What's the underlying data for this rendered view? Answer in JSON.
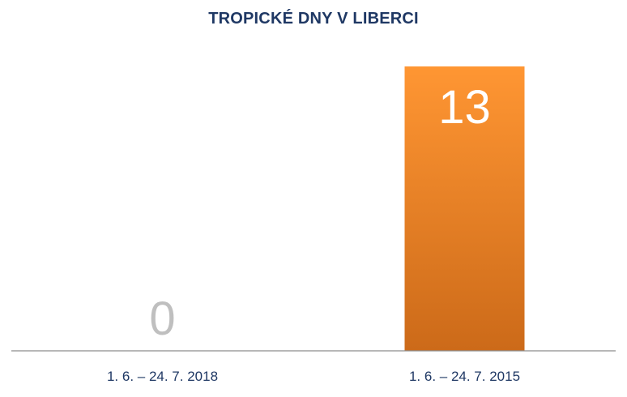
{
  "chart_data": {
    "type": "bar",
    "title": "TROPICKÉ DNY V LIBERCI",
    "categories": [
      "1. 6. – 24. 7. 2018",
      "1. 6. – 24. 7. 2015"
    ],
    "values": [
      0,
      13
    ],
    "ylim": [
      0,
      13
    ],
    "grid": false,
    "colors": {
      "bar_top": "#ff9633",
      "bar_bottom": "#cc6a19",
      "label_on_bar": "#ffffff",
      "label_zero": "#bfbfbf",
      "axis": "#8c8c8c",
      "title": "#1f3864",
      "category_text": "#1f3864"
    }
  }
}
